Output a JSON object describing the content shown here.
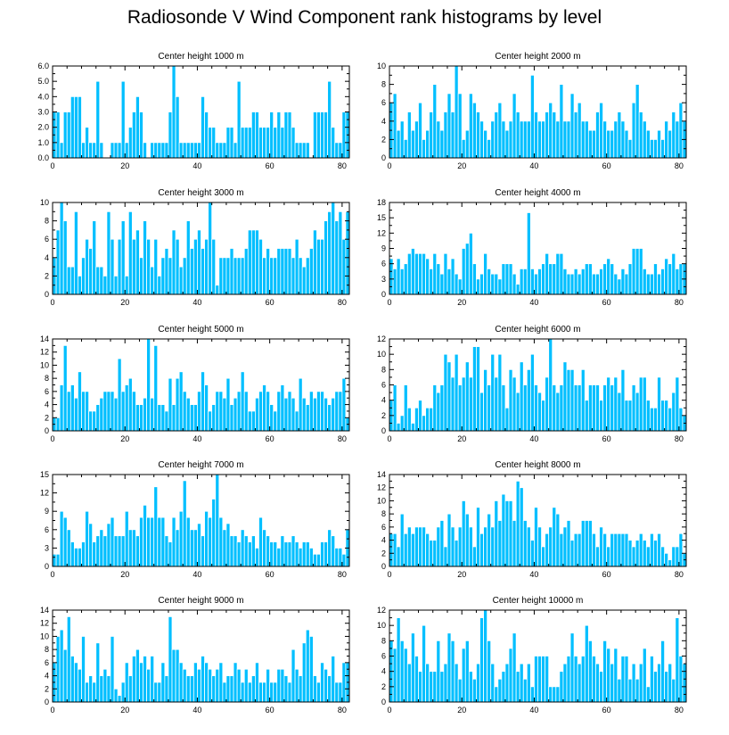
{
  "title": "Radiosonde V Wind Component rank histograms by level",
  "colors": {
    "bar": "#00bfff",
    "bar_edge": "#ffffff",
    "frame": "#000000"
  },
  "chart_data": [
    {
      "type": "bar",
      "title": "Center height 1000 m",
      "xlim": [
        0,
        82
      ],
      "ylim": [
        0,
        6
      ],
      "xticks": [
        "0",
        "20",
        "40",
        "60",
        "80"
      ],
      "xtick_values": [
        0,
        20,
        40,
        60,
        80
      ],
      "yticks": [
        "0.0",
        "1.0",
        "2.0",
        "3.0",
        "4.0",
        "5.0",
        "6.0"
      ],
      "ytick_values": [
        0,
        1,
        2,
        3,
        4,
        5,
        6
      ],
      "values": [
        3,
        3,
        1,
        3,
        3,
        4,
        4,
        4,
        1,
        2,
        1,
        1,
        5,
        1,
        0,
        0,
        1,
        1,
        1,
        5,
        1,
        2,
        3,
        4,
        3,
        1,
        0,
        1,
        1,
        1,
        1,
        1,
        3,
        6,
        4,
        1,
        1,
        1,
        1,
        1,
        1,
        4,
        3,
        2,
        2,
        1,
        1,
        1,
        2,
        2,
        1,
        5,
        2,
        2,
        2,
        3,
        3,
        2,
        2,
        2,
        3,
        2,
        3,
        2,
        3,
        3,
        2,
        1,
        1,
        1,
        1,
        0,
        3,
        3,
        3,
        3,
        5,
        2,
        1,
        1,
        3,
        3
      ]
    },
    {
      "type": "bar",
      "title": "Center height 2000 m",
      "xlim": [
        0,
        82
      ],
      "ylim": [
        0,
        10
      ],
      "xticks": [
        "0",
        "20",
        "40",
        "60",
        "80"
      ],
      "xtick_values": [
        0,
        20,
        40,
        60,
        80
      ],
      "yticks": [
        "0",
        "2",
        "4",
        "6",
        "8",
        "10"
      ],
      "ytick_values": [
        0,
        2,
        4,
        6,
        8,
        10
      ],
      "values": [
        6,
        7,
        3,
        4,
        2,
        5,
        3,
        4,
        6,
        2,
        3,
        5,
        8,
        4,
        3,
        5,
        7,
        5,
        10,
        7,
        2,
        3,
        7,
        6,
        5,
        4,
        3,
        2,
        4,
        5,
        6,
        4,
        3,
        4,
        7,
        5,
        4,
        4,
        4,
        9,
        5,
        4,
        4,
        5,
        6,
        5,
        4,
        8,
        4,
        4,
        7,
        5,
        6,
        4,
        4,
        3,
        3,
        5,
        6,
        4,
        3,
        3,
        4,
        5,
        4,
        3,
        2,
        6,
        8,
        5,
        4,
        3,
        2,
        2,
        3,
        2,
        4,
        3,
        5,
        4,
        6,
        4
      ]
    },
    {
      "type": "bar",
      "title": "Center height 3000 m",
      "xlim": [
        0,
        82
      ],
      "ylim": [
        0,
        10
      ],
      "xticks": [
        "0",
        "20",
        "40",
        "60",
        "80"
      ],
      "xtick_values": [
        0,
        20,
        40,
        60,
        80
      ],
      "yticks": [
        "0",
        "2",
        "4",
        "6",
        "8",
        "10"
      ],
      "ytick_values": [
        0,
        2,
        4,
        6,
        8,
        10
      ],
      "values": [
        4,
        7,
        10,
        8,
        3,
        3,
        9,
        2,
        4,
        6,
        5,
        8,
        3,
        3,
        2,
        9,
        6,
        2,
        6,
        8,
        2,
        9,
        6,
        7,
        4,
        8,
        6,
        3,
        6,
        2,
        4,
        5,
        4,
        7,
        6,
        3,
        4,
        8,
        5,
        6,
        7,
        5,
        6,
        10,
        6,
        1,
        4,
        4,
        4,
        5,
        4,
        4,
        4,
        5,
        7,
        7,
        7,
        6,
        4,
        5,
        4,
        4,
        5,
        5,
        5,
        5,
        4,
        6,
        4,
        3,
        4,
        5,
        7,
        6,
        6,
        8,
        9,
        10,
        8,
        9,
        6,
        9
      ]
    },
    {
      "type": "bar",
      "title": "Center height 4000 m",
      "xlim": [
        0,
        82
      ],
      "ylim": [
        0,
        18
      ],
      "xticks": [
        "0",
        "20",
        "40",
        "60",
        "80"
      ],
      "xtick_values": [
        0,
        20,
        40,
        60,
        80
      ],
      "yticks": [
        "0",
        "3",
        "6",
        "9",
        "12",
        "15",
        "18"
      ],
      "ytick_values": [
        0,
        3,
        6,
        9,
        12,
        15,
        18
      ],
      "values": [
        7,
        5,
        7,
        5,
        6,
        8,
        9,
        8,
        8,
        8,
        7,
        5,
        8,
        6,
        4,
        8,
        5,
        7,
        4,
        3,
        9,
        10,
        12,
        6,
        3,
        4,
        8,
        5,
        4,
        4,
        3,
        6,
        6,
        6,
        4,
        2,
        5,
        5,
        16,
        5,
        4,
        5,
        6,
        8,
        6,
        6,
        8,
        8,
        5,
        4,
        4,
        5,
        4,
        5,
        6,
        6,
        4,
        4,
        5,
        6,
        7,
        6,
        4,
        3,
        5,
        4,
        6,
        9,
        9,
        9,
        5,
        4,
        4,
        6,
        4,
        5,
        7,
        6,
        8,
        5,
        6,
        6
      ]
    },
    {
      "type": "bar",
      "title": "Center height 5000 m",
      "xlim": [
        0,
        82
      ],
      "ylim": [
        0,
        14
      ],
      "xticks": [
        "0",
        "20",
        "40",
        "60",
        "80"
      ],
      "xtick_values": [
        0,
        20,
        40,
        60,
        80
      ],
      "yticks": [
        "0",
        "2",
        "4",
        "6",
        "8",
        "10",
        "12",
        "14"
      ],
      "ytick_values": [
        0,
        2,
        4,
        6,
        8,
        10,
        12,
        14
      ],
      "values": [
        2,
        2,
        7,
        13,
        6,
        7,
        5,
        9,
        6,
        6,
        3,
        3,
        4,
        5,
        6,
        6,
        6,
        5,
        11,
        6,
        7,
        8,
        6,
        4,
        4,
        5,
        14,
        5,
        13,
        4,
        4,
        3,
        8,
        4,
        8,
        9,
        6,
        5,
        4,
        4,
        6,
        9,
        7,
        3,
        4,
        6,
        6,
        5,
        8,
        4,
        5,
        6,
        9,
        6,
        3,
        3,
        5,
        6,
        7,
        6,
        4,
        3,
        6,
        7,
        5,
        6,
        5,
        3,
        8,
        5,
        4,
        6,
        5,
        6,
        6,
        5,
        4,
        5,
        6,
        6,
        8,
        2
      ]
    },
    {
      "type": "bar",
      "title": "Center height 6000 m",
      "xlim": [
        0,
        82
      ],
      "ylim": [
        0,
        12
      ],
      "xticks": [
        "0",
        "20",
        "40",
        "60",
        "80"
      ],
      "xtick_values": [
        0,
        20,
        40,
        60,
        80
      ],
      "yticks": [
        "0",
        "2",
        "4",
        "6",
        "8",
        "10",
        "12"
      ],
      "ytick_values": [
        0,
        2,
        4,
        6,
        8,
        10,
        12
      ],
      "values": [
        4,
        6,
        1,
        2,
        6,
        3,
        1,
        3,
        4,
        2,
        3,
        3,
        6,
        5,
        6,
        10,
        9,
        7,
        10,
        6,
        7,
        9,
        7,
        11,
        11,
        5,
        8,
        6,
        10,
        7,
        10,
        6,
        3,
        8,
        7,
        5,
        9,
        6,
        8,
        10,
        6,
        5,
        4,
        7,
        12,
        6,
        5,
        6,
        9,
        8,
        8,
        6,
        6,
        8,
        4,
        6,
        6,
        6,
        4,
        6,
        7,
        6,
        7,
        5,
        8,
        4,
        4,
        6,
        5,
        7,
        7,
        4,
        3,
        3,
        7,
        4,
        4,
        3,
        5,
        7,
        3,
        2
      ]
    },
    {
      "type": "bar",
      "title": "Center height 7000 m",
      "xlim": [
        0,
        82
      ],
      "ylim": [
        0,
        15
      ],
      "xticks": [
        "0",
        "20",
        "40",
        "60",
        "80"
      ],
      "xtick_values": [
        0,
        20,
        40,
        60,
        80
      ],
      "yticks": [
        "0",
        "3",
        "6",
        "9",
        "12",
        "15"
      ],
      "ytick_values": [
        0,
        3,
        6,
        9,
        12,
        15
      ],
      "values": [
        2,
        2,
        9,
        8,
        6,
        4,
        3,
        3,
        4,
        9,
        7,
        4,
        5,
        6,
        5,
        7,
        8,
        5,
        5,
        5,
        9,
        6,
        6,
        5,
        8,
        10,
        8,
        8,
        13,
        8,
        8,
        5,
        4,
        8,
        6,
        9,
        14,
        8,
        6,
        6,
        7,
        5,
        9,
        8,
        11,
        15,
        8,
        6,
        7,
        5,
        5,
        4,
        6,
        5,
        4,
        5,
        3,
        8,
        6,
        5,
        4,
        4,
        3,
        5,
        4,
        4,
        5,
        4,
        3,
        4,
        4,
        3,
        2,
        2,
        4,
        4,
        6,
        5,
        3,
        3,
        2,
        6
      ]
    },
    {
      "type": "bar",
      "title": "Center height 8000 m",
      "xlim": [
        0,
        82
      ],
      "ylim": [
        0,
        14
      ],
      "xticks": [
        "0",
        "20",
        "40",
        "60",
        "80"
      ],
      "xtick_values": [
        0,
        20,
        40,
        60,
        80
      ],
      "yticks": [
        "0",
        "2",
        "4",
        "6",
        "8",
        "10",
        "12",
        "14"
      ],
      "ytick_values": [
        0,
        2,
        4,
        6,
        8,
        10,
        12,
        14
      ],
      "values": [
        5,
        5,
        3,
        8,
        5,
        6,
        5,
        6,
        6,
        6,
        5,
        4,
        4,
        6,
        7,
        3,
        8,
        6,
        4,
        6,
        10,
        8,
        6,
        3,
        9,
        5,
        6,
        8,
        6,
        10,
        7,
        11,
        10,
        10,
        7,
        13,
        12,
        7,
        6,
        4,
        9,
        6,
        3,
        5,
        6,
        9,
        8,
        5,
        6,
        7,
        4,
        5,
        5,
        7,
        7,
        7,
        5,
        3,
        6,
        5,
        3,
        5,
        5,
        5,
        5,
        5,
        4,
        3,
        4,
        5,
        4,
        3,
        5,
        4,
        5,
        3,
        2,
        1,
        3,
        3,
        5,
        2
      ]
    },
    {
      "type": "bar",
      "title": "Center height 9000 m",
      "xlim": [
        0,
        82
      ],
      "ylim": [
        0,
        14
      ],
      "xticks": [
        "0",
        "20",
        "40",
        "60",
        "80"
      ],
      "xtick_values": [
        0,
        20,
        40,
        60,
        80
      ],
      "yticks": [
        "0",
        "2",
        "4",
        "6",
        "8",
        "10",
        "12",
        "14"
      ],
      "ytick_values": [
        0,
        2,
        4,
        6,
        8,
        10,
        12,
        14
      ],
      "values": [
        6,
        10,
        11,
        8,
        13,
        7,
        6,
        5,
        10,
        3,
        4,
        3,
        9,
        4,
        5,
        4,
        10,
        2,
        1,
        3,
        6,
        4,
        7,
        8,
        6,
        7,
        5,
        7,
        3,
        3,
        6,
        4,
        13,
        8,
        8,
        6,
        5,
        4,
        4,
        6,
        5,
        7,
        6,
        5,
        4,
        5,
        6,
        3,
        4,
        4,
        6,
        5,
        3,
        5,
        3,
        4,
        6,
        3,
        3,
        5,
        3,
        3,
        5,
        5,
        4,
        3,
        8,
        5,
        4,
        9,
        11,
        10,
        4,
        3,
        6,
        5,
        4,
        7,
        3,
        3,
        6,
        6
      ]
    },
    {
      "type": "bar",
      "title": "Center height 10000 m",
      "xlim": [
        0,
        82
      ],
      "ylim": [
        0,
        12
      ],
      "xticks": [
        "0",
        "20",
        "40",
        "60",
        "80"
      ],
      "xtick_values": [
        0,
        20,
        40,
        60,
        80
      ],
      "yticks": [
        "0",
        "2",
        "4",
        "6",
        "8",
        "10",
        "12"
      ],
      "ytick_values": [
        0,
        2,
        4,
        6,
        8,
        10,
        12
      ],
      "values": [
        8,
        7,
        11,
        8,
        7,
        5,
        9,
        6,
        4,
        10,
        5,
        4,
        4,
        8,
        4,
        5,
        9,
        8,
        5,
        3,
        7,
        8,
        4,
        3,
        5,
        11,
        12,
        8,
        5,
        2,
        3,
        4,
        5,
        7,
        9,
        4,
        5,
        3,
        5,
        2,
        6,
        6,
        6,
        6,
        2,
        2,
        2,
        4,
        5,
        6,
        9,
        6,
        5,
        6,
        10,
        8,
        6,
        5,
        4,
        8,
        7,
        5,
        7,
        3,
        6,
        6,
        3,
        5,
        3,
        5,
        7,
        2,
        6,
        4,
        5,
        8,
        4,
        5,
        3,
        11,
        6,
        5
      ]
    }
  ]
}
